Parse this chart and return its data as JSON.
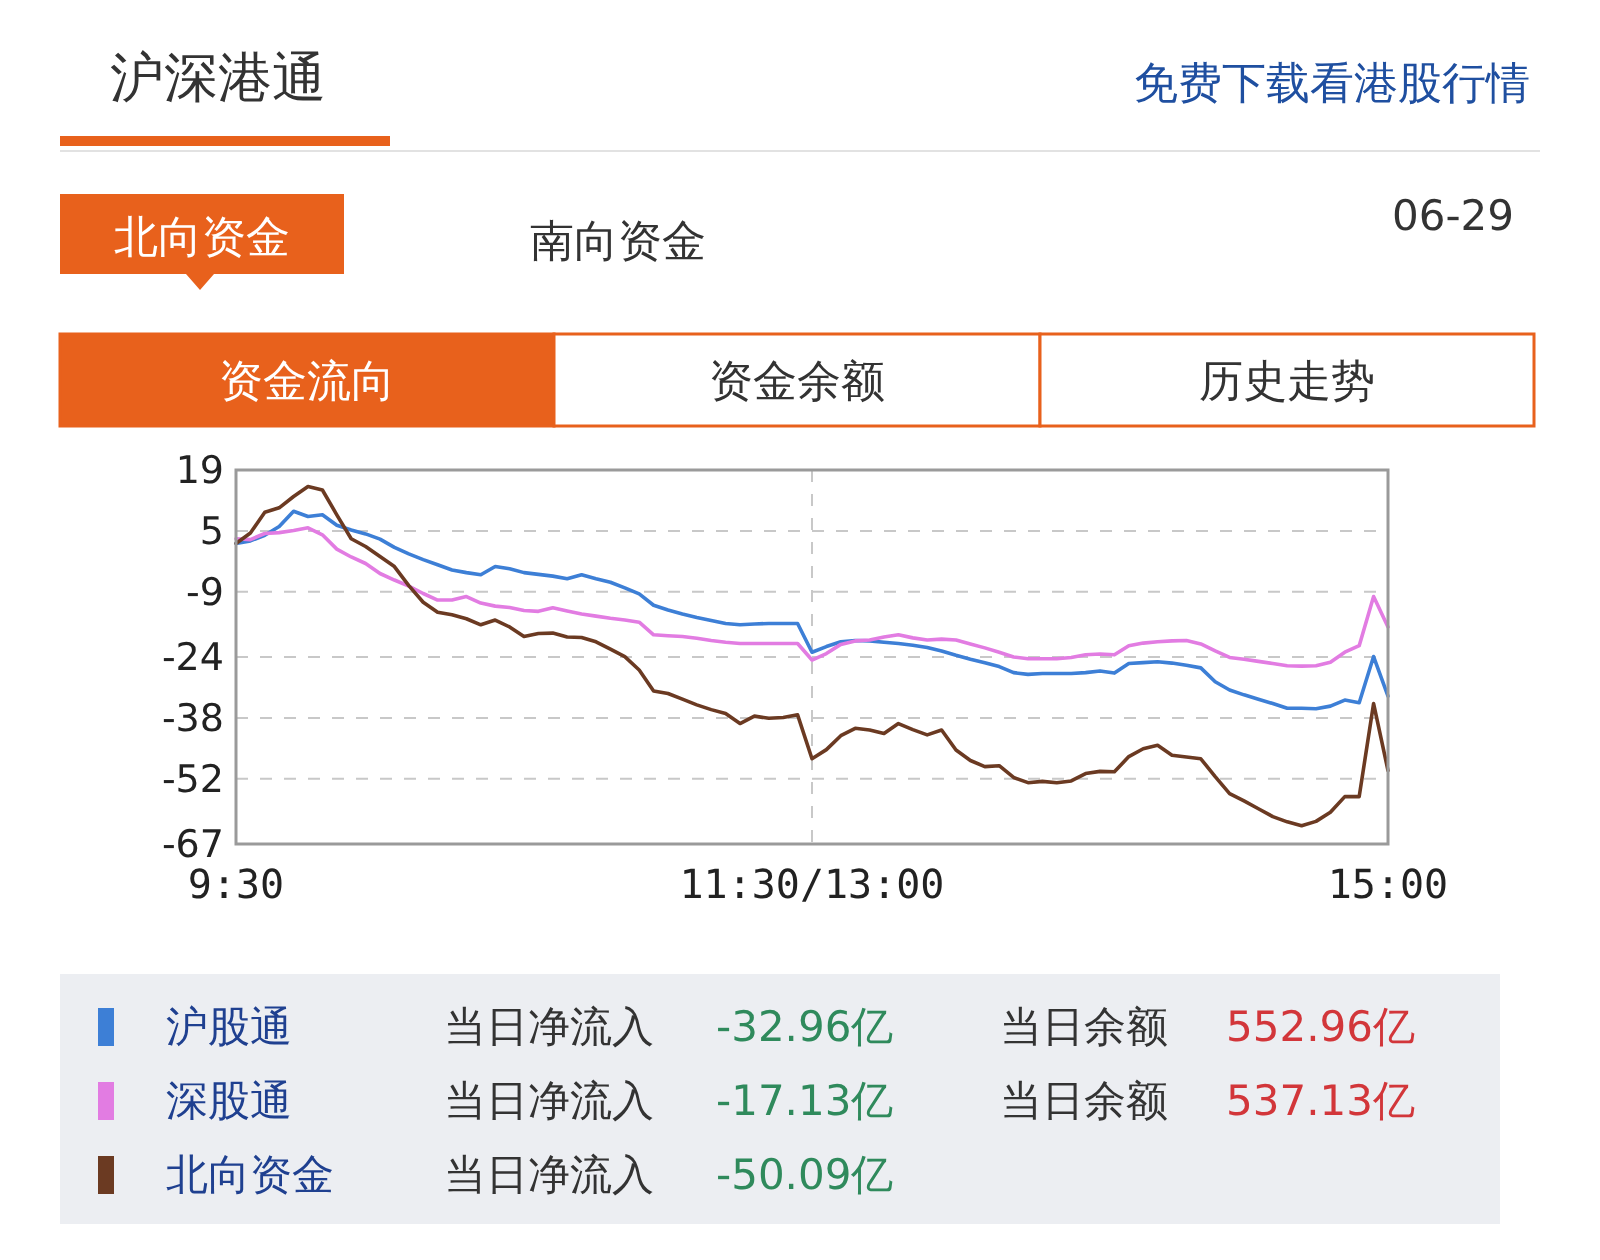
{
  "chart_data": {
    "type": "line",
    "title": "沪深港通",
    "annotations": [
      "免费下载看港股行情",
      "北向资金",
      "南向资金",
      "06-29",
      "资金流向",
      "资金余额",
      "历史走势",
      "当日净流入",
      "-32.96亿",
      "当日余额",
      "552.96亿",
      "当日净流入",
      "-17.13亿",
      "当日余额",
      "537.13亿",
      "当日净流入",
      "-50.09亿"
    ],
    "categories": [
      "9:30",
      null,
      null,
      null,
      null,
      null,
      null,
      null,
      null,
      null,
      null,
      null,
      null,
      null,
      null,
      null,
      null,
      null,
      null,
      null,
      null,
      null,
      null,
      null,
      null,
      null,
      null,
      null,
      null,
      null,
      null,
      null,
      null,
      null,
      null,
      null,
      null,
      null,
      null,
      null,
      "11:30/13:00",
      null,
      null,
      null,
      null,
      null,
      null,
      null,
      null,
      null,
      null,
      null,
      null,
      null,
      null,
      null,
      null,
      null,
      null,
      null,
      null,
      null,
      null,
      null,
      null,
      null,
      null,
      null,
      null,
      null,
      null,
      null,
      null,
      null,
      null,
      null,
      null,
      null,
      null,
      null,
      "15:00"
    ],
    "ylim": [
      -67,
      19
    ],
    "yticks": [
      19,
      5,
      -9,
      -24,
      -38,
      -52,
      -67
    ],
    "grid": true,
    "legend": "bottom",
    "line_style": "solid",
    "series": [
      {
        "name": "沪股通",
        "color": "#3d7fd6",
        "values": [
          2.1,
          2.7,
          4.0,
          6.0,
          9.5,
          8.3,
          8.7,
          6.3,
          5.2,
          4.3,
          3.1,
          1.2,
          -0.3,
          -1.6,
          -2.8,
          -4.0,
          -4.6,
          -5.1,
          -3.2,
          -3.7,
          -4.6,
          -5.0,
          -5.4,
          -6.0,
          -5.1,
          -6.0,
          -6.8,
          -8.1,
          -9.5,
          -12.1,
          -13.2,
          -14.1,
          -14.9,
          -15.6,
          -16.3,
          -16.6,
          -16.4,
          -16.3,
          -16.3,
          -16.3,
          -22.9,
          -21.6,
          -20.5,
          -20.2,
          -20.3,
          -20.6,
          -20.9,
          -21.3,
          -21.8,
          -22.6,
          -23.6,
          -24.5,
          -25.3,
          -26.2,
          -27.6,
          -28.0,
          -27.8,
          -27.8,
          -27.8,
          -27.6,
          -27.2,
          -27.7,
          -25.5,
          -25.3,
          -25.1,
          -25.4,
          -25.9,
          -26.5,
          -29.7,
          -31.6,
          -32.7,
          -33.7,
          -34.7,
          -35.8,
          -35.8,
          -35.9,
          -35.3,
          -33.9,
          -34.5,
          -23.9,
          -33.0
        ]
      },
      {
        "name": "深股通",
        "color": "#e27ce2",
        "values": [
          3.2,
          3.0,
          4.4,
          4.6,
          5.1,
          5.7,
          4.1,
          0.8,
          -1.0,
          -2.5,
          -4.8,
          -6.3,
          -7.7,
          -9.4,
          -10.9,
          -10.9,
          -10.1,
          -11.6,
          -12.3,
          -12.6,
          -13.3,
          -13.5,
          -12.7,
          -13.4,
          -14.1,
          -14.6,
          -15.1,
          -15.5,
          -16.0,
          -18.9,
          -19.1,
          -19.3,
          -19.7,
          -20.2,
          -20.6,
          -20.9,
          -20.9,
          -20.9,
          -20.9,
          -20.9,
          -24.7,
          -23.2,
          -21.1,
          -20.3,
          -20.1,
          -19.4,
          -18.9,
          -19.6,
          -20.1,
          -19.9,
          -20.1,
          -21.0,
          -21.9,
          -22.9,
          -24.0,
          -24.4,
          -24.4,
          -24.4,
          -24.1,
          -23.5,
          -23.3,
          -23.5,
          -21.4,
          -20.8,
          -20.5,
          -20.3,
          -20.2,
          -21.0,
          -22.6,
          -24.1,
          -24.5,
          -25.0,
          -25.5,
          -26.0,
          -26.1,
          -26.0,
          -25.2,
          -22.9,
          -21.4,
          -10.1,
          -17.1
        ]
      },
      {
        "name": "北向资金",
        "color": "#6b3a22",
        "values": [
          2.1,
          4.5,
          9.3,
          10.3,
          12.9,
          15.2,
          14.4,
          8.7,
          3.2,
          1.4,
          -0.9,
          -3.2,
          -7.6,
          -11.4,
          -13.7,
          -14.3,
          -15.2,
          -16.6,
          -15.5,
          -17.1,
          -19.3,
          -18.6,
          -18.5,
          -19.4,
          -19.5,
          -20.5,
          -22.2,
          -23.9,
          -27.0,
          -31.8,
          -32.4,
          -33.7,
          -35.0,
          -36.1,
          -37.0,
          -39.3,
          -37.6,
          -38.1,
          -37.9,
          -37.3,
          -47.4,
          -45.3,
          -42.1,
          -40.4,
          -40.8,
          -41.6,
          -39.3,
          -40.7,
          -41.9,
          -40.8,
          -45.4,
          -47.8,
          -49.2,
          -49.0,
          -51.7,
          -52.9,
          -52.6,
          -52.9,
          -52.5,
          -50.8,
          -50.3,
          -50.4,
          -46.9,
          -45.1,
          -44.3,
          -46.6,
          -47.0,
          -47.4,
          -51.5,
          -55.4,
          -57.1,
          -58.9,
          -60.7,
          -61.9,
          -62.8,
          -61.8,
          -59.7,
          -56.1,
          -56.1,
          -34.7,
          -50.1
        ]
      }
    ]
  }
}
